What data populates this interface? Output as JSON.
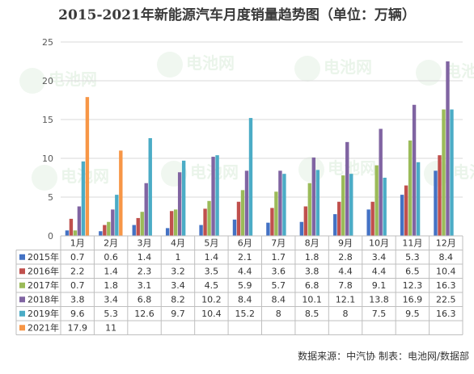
{
  "chart_data": {
    "type": "bar",
    "title": "2015-2021年新能源汽车月度销量趋势图（单位：万辆）",
    "categories": [
      "1月",
      "2月",
      "3月",
      "4月",
      "5月",
      "6月",
      "7月",
      "8月",
      "9月",
      "10月",
      "11月",
      "12月"
    ],
    "ylim": [
      0,
      25
    ],
    "yticks": [
      0,
      5,
      10,
      15,
      20,
      25
    ],
    "grid": true,
    "legend": "data-table-left",
    "series": [
      {
        "name": "2015年",
        "color": "#4472C4",
        "values": [
          0.7,
          0.6,
          1.4,
          1.0,
          1.4,
          2.1,
          1.7,
          1.8,
          2.8,
          3.4,
          5.3,
          8.4
        ]
      },
      {
        "name": "2016年",
        "color": "#C0504D",
        "values": [
          2.2,
          1.4,
          2.3,
          3.2,
          3.5,
          4.4,
          3.6,
          3.8,
          4.4,
          4.4,
          6.5,
          10.4
        ]
      },
      {
        "name": "2017年",
        "color": "#9BBB59",
        "values": [
          0.7,
          1.8,
          3.1,
          3.4,
          4.5,
          5.9,
          5.7,
          6.8,
          7.8,
          9.1,
          12.3,
          16.3
        ]
      },
      {
        "name": "2018年",
        "color": "#8064A2",
        "values": [
          3.8,
          3.4,
          6.8,
          8.2,
          10.2,
          8.4,
          8.4,
          10.1,
          12.1,
          13.8,
          16.9,
          22.5
        ]
      },
      {
        "name": "2019年",
        "color": "#4BACC6",
        "values": [
          9.6,
          5.3,
          12.6,
          9.7,
          10.4,
          15.2,
          8,
          8.5,
          8,
          7.5,
          9.5,
          16.3
        ]
      },
      {
        "name": "2021年",
        "color": "#F79646",
        "values": [
          17.9,
          11,
          null,
          null,
          null,
          null,
          null,
          null,
          null,
          null,
          null,
          null
        ]
      }
    ]
  },
  "footer": {
    "source": "数据来源：中汽协  制表：电池网/数据部"
  },
  "watermark": {
    "text": "电池网"
  }
}
